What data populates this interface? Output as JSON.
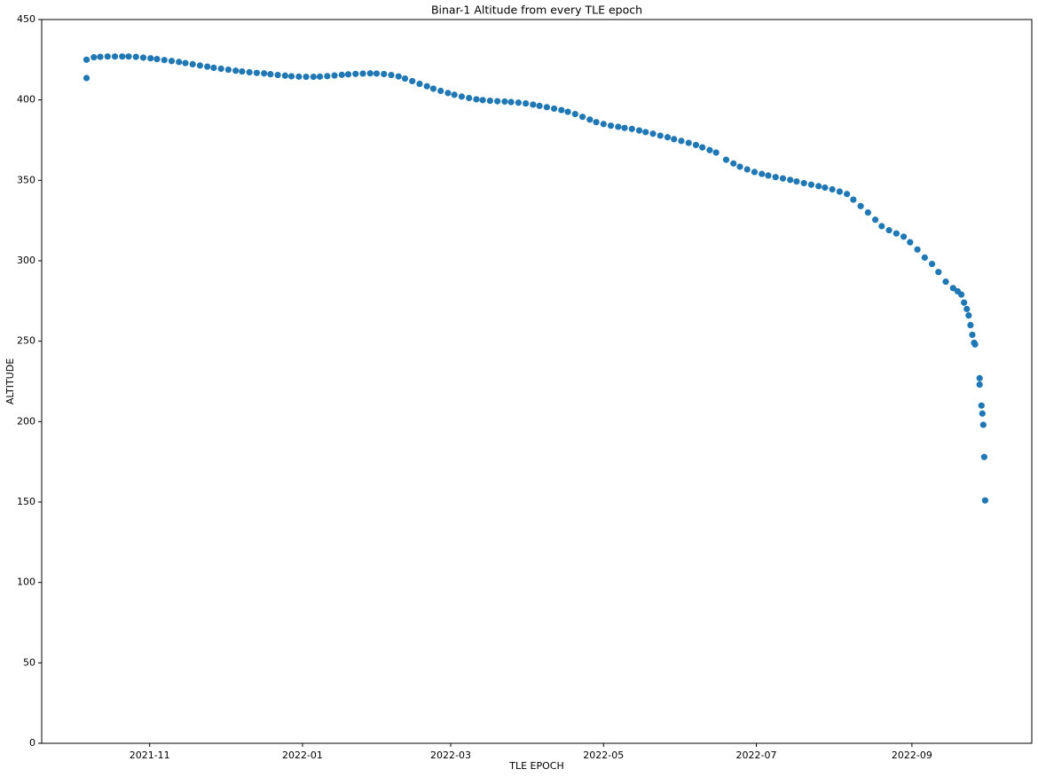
{
  "chart_data": {
    "type": "scatter",
    "title": "Binar-1 Altitude from every TLE epoch",
    "x_label": "TLE EPOCH",
    "y_label": "ALTITUDE",
    "color": "#1f77b4",
    "grid": false,
    "xlim": [
      2021.715,
      2022.797
    ],
    "xticks": [
      {
        "value": 2021.833,
        "label": "2021-11"
      },
      {
        "value": 2022.0,
        "label": "2022-01"
      },
      {
        "value": 2022.162,
        "label": "2022-03"
      },
      {
        "value": 2022.329,
        "label": "2022-05"
      },
      {
        "value": 2022.496,
        "label": "2022-07"
      },
      {
        "value": 2022.666,
        "label": "2022-09"
      }
    ],
    "ylim": [
      0,
      450
    ],
    "yticks": [
      0,
      50,
      100,
      150,
      200,
      250,
      300,
      350,
      400,
      450
    ],
    "x": [
      2021.764,
      2021.764,
      2021.772,
      2021.779,
      2021.787,
      2021.795,
      2021.803,
      2021.81,
      2021.818,
      2021.826,
      2021.834,
      2021.841,
      2021.849,
      2021.857,
      2021.865,
      2021.872,
      2021.88,
      2021.888,
      2021.896,
      2021.903,
      2021.911,
      2021.919,
      2021.927,
      2021.934,
      2021.942,
      2021.95,
      2021.958,
      2021.965,
      2021.973,
      2021.981,
      2021.988,
      2021.996,
      2022.004,
      2022.012,
      2022.019,
      2022.027,
      2022.035,
      2022.043,
      2022.05,
      2022.058,
      2022.066,
      2022.074,
      2022.081,
      2022.089,
      2022.097,
      2022.105,
      2022.112,
      2022.12,
      2022.128,
      2022.136,
      2022.143,
      2022.151,
      2022.159,
      2022.166,
      2022.174,
      2022.182,
      2022.19,
      2022.197,
      2022.205,
      2022.213,
      2022.221,
      2022.228,
      2022.236,
      2022.244,
      2022.252,
      2022.259,
      2022.267,
      2022.275,
      2022.283,
      2022.29,
      2022.298,
      2022.306,
      2022.314,
      2022.321,
      2022.329,
      2022.337,
      2022.345,
      2022.352,
      2022.36,
      2022.368,
      2022.375,
      2022.383,
      2022.391,
      2022.399,
      2022.406,
      2022.414,
      2022.422,
      2022.43,
      2022.437,
      2022.445,
      2022.452,
      2022.463,
      2022.471,
      2022.478,
      2022.486,
      2022.494,
      2022.502,
      2022.509,
      2022.517,
      2022.525,
      2022.533,
      2022.54,
      2022.548,
      2022.556,
      2022.564,
      2022.571,
      2022.579,
      2022.587,
      2022.595,
      2022.602,
      2022.61,
      2022.618,
      2022.626,
      2022.633,
      2022.641,
      2022.649,
      2022.657,
      2022.664,
      2022.672,
      2022.68,
      2022.688,
      2022.695,
      2022.703,
      2022.711,
      2022.716,
      2022.72,
      2022.723,
      2022.726,
      2022.728,
      2022.73,
      2022.732,
      2022.734,
      2022.735,
      2022.74,
      2022.74,
      2022.742,
      2022.743,
      2022.744,
      2022.745,
      2022.746
    ],
    "values": [
      413.6,
      425,
      426.5,
      426.8,
      427,
      427,
      427,
      427,
      426.8,
      426.3,
      425.9,
      425.4,
      424.8,
      424.2,
      423.6,
      422.9,
      422.2,
      421.4,
      420.7,
      420,
      419.4,
      418.8,
      418.2,
      417.7,
      417.2,
      416.8,
      416.5,
      416,
      415.5,
      415.1,
      414.7,
      414.5,
      414.4,
      414.4,
      414.5,
      414.8,
      415.2,
      415.6,
      415.9,
      416.2,
      416.4,
      416.5,
      416.4,
      416.1,
      415.5,
      414.6,
      413.3,
      411.7,
      410,
      408.5,
      407,
      405.6,
      404.3,
      403.2,
      402.1,
      401.2,
      400.4,
      399.9,
      399.5,
      399.2,
      399,
      398.7,
      398.3,
      397.8,
      397.1,
      396.3,
      395.5,
      394.6,
      393.7,
      392.6,
      391.2,
      389.5,
      387.8,
      386.2,
      385,
      384,
      383.3,
      382.6,
      382,
      381,
      380,
      379,
      377.8,
      376.8,
      375.6,
      374.5,
      373.3,
      372,
      370.5,
      368.8,
      367.3,
      362.8,
      360.5,
      358.5,
      356.8,
      355.2,
      354,
      353,
      352,
      351.2,
      350.3,
      349.3,
      348.3,
      347.3,
      346.4,
      345.5,
      344.4,
      343,
      341.5,
      338,
      334,
      330,
      325.5,
      321.5,
      319,
      317,
      315,
      311.5,
      307,
      302,
      298,
      293,
      287,
      283,
      281,
      279,
      274,
      270,
      266,
      260,
      254,
      249,
      248,
      227,
      223,
      210,
      205,
      198,
      178,
      151
    ]
  }
}
